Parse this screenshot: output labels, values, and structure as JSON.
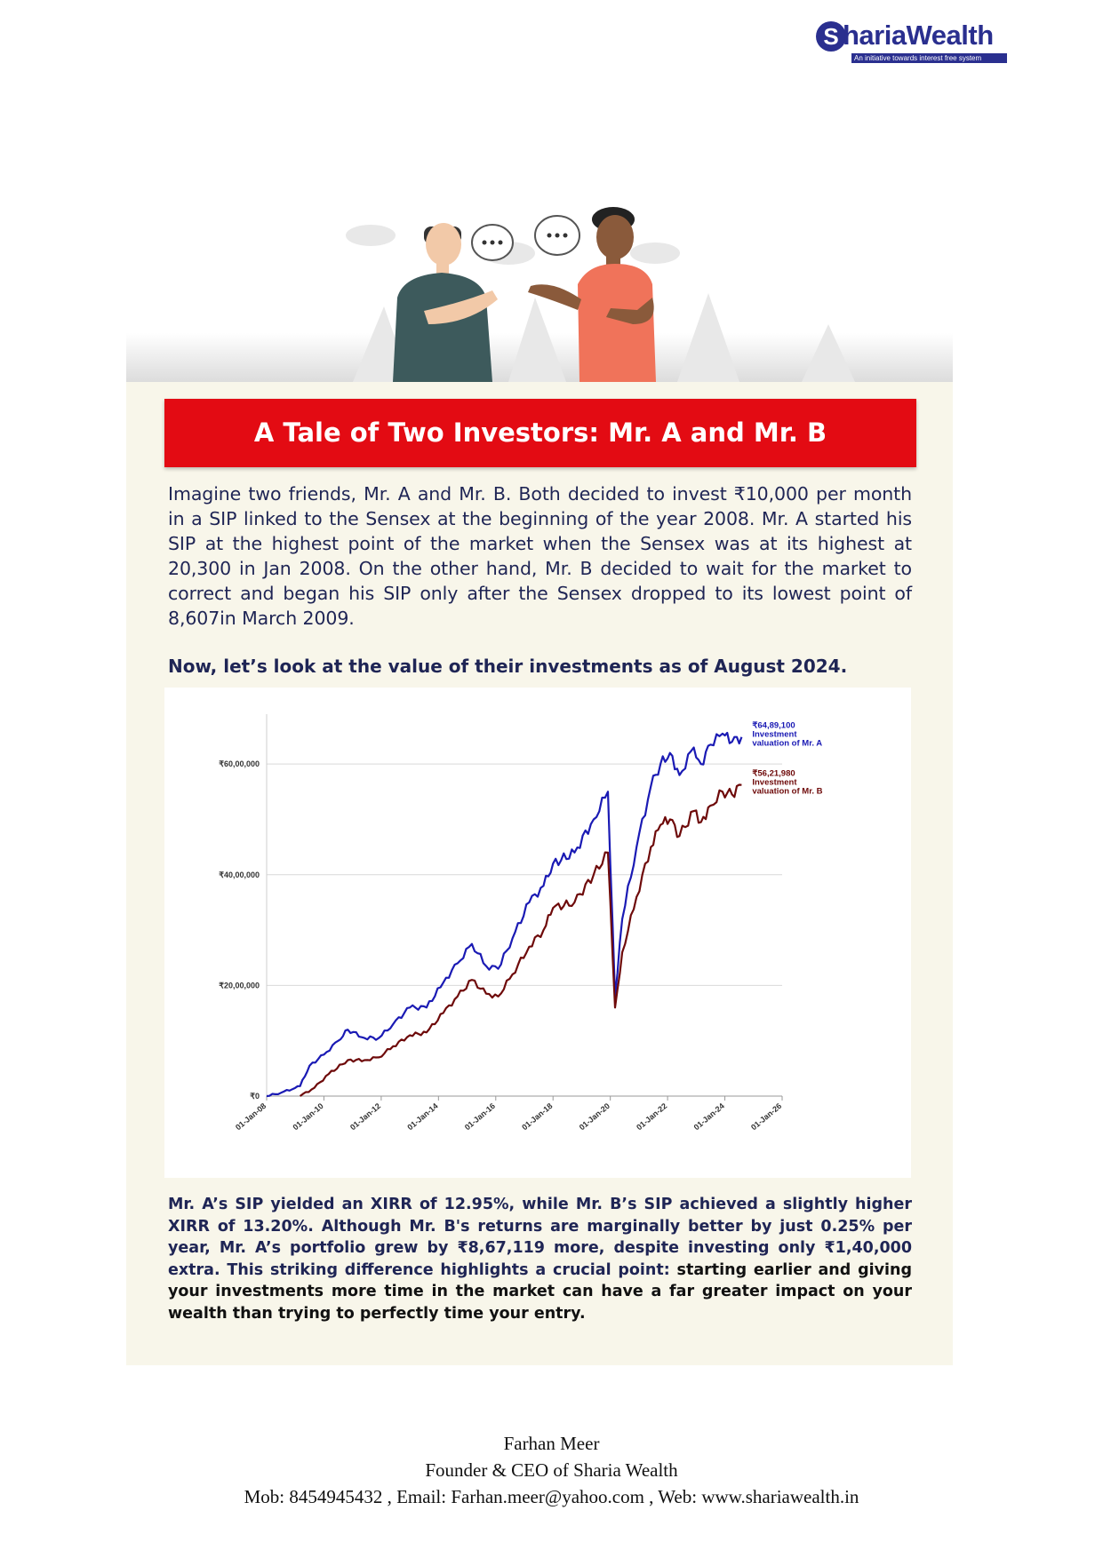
{
  "brand": {
    "mark": "S",
    "name": "hariaWealth",
    "tagline": "An initiative towards interest free system"
  },
  "title": "A Tale of Two Investors: Mr. A and Mr. B",
  "intro": "Imagine two friends, Mr. A and Mr. B. Both decided to invest ₹10,000 per month in a SIP linked to the Sensex at the beginning of the year 2008. Mr. A started his SIP at the highest point of the market when the Sensex was at its highest at 20,300 in Jan 2008. On the other hand, Mr. B decided to wait for the market to correct and began his SIP only after the Sensex dropped to its lowest point of 8,607in March 2009.",
  "subheading": "Now, let’s look at the value of their investments as of August 2024.",
  "summary": {
    "part1": "Mr. A’s SIP yielded an XIRR of 12.95%, while Mr. B’s SIP achieved a slightly higher XIRR of 13.20%. Although Mr. B's returns are marginally better by just 0.25% per year, Mr. A’s portfolio grew by ₹8,67,119 more, despite investing only ₹1,40,000 extra. This striking difference highlights a crucial point: ",
    "part2": "starting earlier and giving your investments more time in the market can have a far greater impact on your wealth than trying to perfectly time your entry."
  },
  "footer": {
    "name": "Farhan Meer",
    "role": "Founder & CEO of Sharia Wealth",
    "contact": "Mob: 8454945432 , Email: Farhan.meer@yahoo.com , Web: www.shariawealth.in"
  },
  "chart_data": {
    "type": "line",
    "x_ticks": [
      "01-Jan-08",
      "01-Jan-10",
      "01-Jan-12",
      "01-Jan-14",
      "01-Jan-16",
      "01-Jan-18",
      "01-Jan-20",
      "01-Jan-22",
      "01-Jan-24",
      "01-Jan-26"
    ],
    "y_ticks": [
      "₹0",
      "₹20,00,000",
      "₹40,00,000",
      "₹60,00,000"
    ],
    "ylim": [
      0,
      6500000
    ],
    "xlim": [
      "2008-01",
      "2026-01"
    ],
    "grid": "horizontal",
    "colors": {
      "A": "#1a1ab4",
      "B": "#6e0a0a"
    },
    "series": [
      {
        "key": "A",
        "label_value": "₹64,89,100",
        "label_text": [
          "Investment",
          "valuation of Mr. A"
        ],
        "points": [
          [
            "2008-01",
            0
          ],
          [
            "2008-07",
            60000
          ],
          [
            "2009-01",
            150000
          ],
          [
            "2009-03",
            180000
          ],
          [
            "2009-07",
            550000
          ],
          [
            "2010-01",
            750000
          ],
          [
            "2010-07",
            1000000
          ],
          [
            "2010-11",
            1200000
          ],
          [
            "2011-06",
            1050000
          ],
          [
            "2011-12",
            1050000
          ],
          [
            "2012-06",
            1300000
          ],
          [
            "2013-01",
            1600000
          ],
          [
            "2013-08",
            1600000
          ],
          [
            "2014-03",
            2050000
          ],
          [
            "2014-09",
            2400000
          ],
          [
            "2015-03",
            2750000
          ],
          [
            "2015-09",
            2350000
          ],
          [
            "2016-02",
            2300000
          ],
          [
            "2016-08",
            2850000
          ],
          [
            "2017-03",
            3500000
          ],
          [
            "2017-09",
            3800000
          ],
          [
            "2018-01",
            4200000
          ],
          [
            "2018-10",
            4400000
          ],
          [
            "2019-06",
            5000000
          ],
          [
            "2019-12",
            5500000
          ],
          [
            "2020-03",
            1800000
          ],
          [
            "2020-06",
            3200000
          ],
          [
            "2020-12",
            4500000
          ],
          [
            "2021-06",
            5600000
          ],
          [
            "2021-10",
            6000000
          ],
          [
            "2022-02",
            6200000
          ],
          [
            "2022-06",
            5800000
          ],
          [
            "2022-12",
            6300000
          ],
          [
            "2023-03",
            6000000
          ],
          [
            "2023-07",
            6350000
          ],
          [
            "2023-12",
            6550000
          ],
          [
            "2024-04",
            6400000
          ],
          [
            "2024-08",
            6489100
          ]
        ]
      },
      {
        "key": "B",
        "label_value": "₹56,21,980",
        "label_text": [
          "Investment",
          "valuation of Mr. B"
        ],
        "points": [
          [
            "2009-03",
            0
          ],
          [
            "2009-09",
            150000
          ],
          [
            "2010-03",
            400000
          ],
          [
            "2010-11",
            650000
          ],
          [
            "2011-06",
            650000
          ],
          [
            "2011-12",
            700000
          ],
          [
            "2012-06",
            900000
          ],
          [
            "2013-01",
            1100000
          ],
          [
            "2013-08",
            1150000
          ],
          [
            "2014-03",
            1500000
          ],
          [
            "2014-09",
            1800000
          ],
          [
            "2015-03",
            2100000
          ],
          [
            "2015-09",
            1850000
          ],
          [
            "2016-02",
            1800000
          ],
          [
            "2016-08",
            2200000
          ],
          [
            "2017-03",
            2700000
          ],
          [
            "2017-09",
            3000000
          ],
          [
            "2018-01",
            3400000
          ],
          [
            "2018-10",
            3500000
          ],
          [
            "2019-06",
            4000000
          ],
          [
            "2019-12",
            4400000
          ],
          [
            "2020-03",
            1600000
          ],
          [
            "2020-06",
            2600000
          ],
          [
            "2020-12",
            3600000
          ],
          [
            "2021-06",
            4500000
          ],
          [
            "2021-10",
            4900000
          ],
          [
            "2022-02",
            5000000
          ],
          [
            "2022-06",
            4700000
          ],
          [
            "2022-12",
            5150000
          ],
          [
            "2023-03",
            4950000
          ],
          [
            "2023-07",
            5250000
          ],
          [
            "2023-12",
            5500000
          ],
          [
            "2024-04",
            5450000
          ],
          [
            "2024-08",
            5621980
          ]
        ]
      }
    ]
  }
}
